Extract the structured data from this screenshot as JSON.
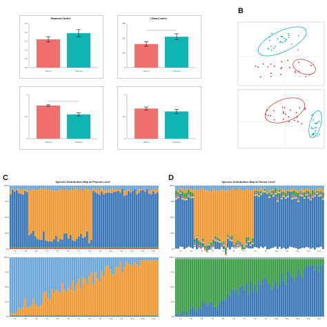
{
  "labels": {
    "b": "B",
    "c": "C",
    "d": "D"
  },
  "colors": {
    "red": "#f0716b",
    "teal": "#10b4b4",
    "phylum": [
      "#3a78b8",
      "#f39a32",
      "#cf3b2f",
      "#6aa6d8",
      "#3d9c46",
      "#9a6fb0",
      "#e7c84b",
      "#2d4a85",
      "#a0522d",
      "#c7c7c7"
    ],
    "genus_red": "#f4a58f"
  },
  "chart_data": [
    {
      "type": "bar",
      "title": "Shannon Index",
      "categories": [
        "Dehmt",
        "Trachine"
      ],
      "values": [
        1.6,
        1.95
      ],
      "errors": [
        0.15,
        0.2
      ],
      "ylim": [
        0,
        2.5
      ],
      "yticks": [
        "0.0",
        "0.5",
        "1.0",
        "1.5",
        "2.0",
        "2.5"
      ]
    },
    {
      "type": "bar",
      "title": "Chao1 Index",
      "categories": [
        "Dehmt",
        "Trachine"
      ],
      "values": [
        160,
        210
      ],
      "errors": [
        15,
        20
      ],
      "ylim": [
        0,
        300
      ],
      "yticks": [
        "0",
        "100",
        "200",
        "300"
      ]
    },
    {
      "type": "bar",
      "title": "",
      "categories": [
        "Dehmt",
        "Trachine"
      ],
      "values": [
        0.9,
        0.66
      ],
      "errors": [
        0.02,
        0.04
      ],
      "ylim": [
        0,
        1.2
      ],
      "yticks": [
        "0",
        "0.5",
        "1"
      ]
    },
    {
      "type": "bar",
      "title": "",
      "categories": [
        "Dehmt",
        "Trachine"
      ],
      "values": [
        0.82,
        0.74
      ],
      "errors": [
        0.04,
        0.06
      ],
      "ylim": [
        0,
        1.2
      ],
      "yticks": [
        "0",
        "0.5",
        "1"
      ]
    }
  ],
  "phylum_title": "Species Distribution Map at Phylum Level",
  "genus_title": "Species Distribution Map at Genus Level",
  "x_ticks": [
    "T1",
    "T2",
    "T3",
    "T4",
    "T5",
    "T6",
    "T7",
    "T8",
    "T9",
    "T10",
    "T11",
    "T12",
    "T13",
    "T14"
  ],
  "pct_ticks": [
    "100%",
    "75%",
    "50%",
    "25%",
    "0%"
  ]
}
